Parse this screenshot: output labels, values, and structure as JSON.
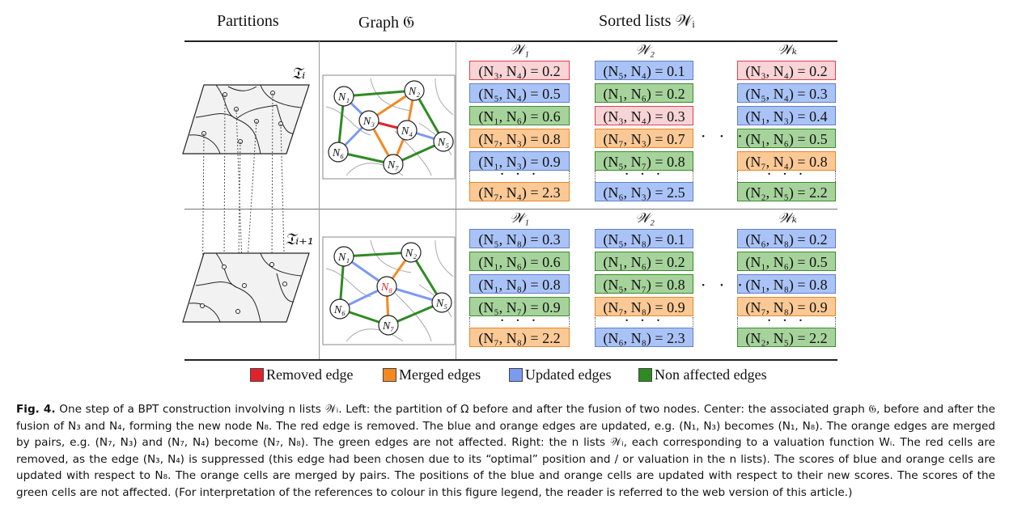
{
  "headers": {
    "partitions": "Partitions",
    "graph": "Graph 𝔊",
    "sorted_lists": "Sorted lists 𝒲ᵢ"
  },
  "partition_labels": {
    "top": "𝔗ᵢ",
    "bottom": "𝔗ᵢ₊₁"
  },
  "lists_top": [
    {
      "name": "𝒲₁",
      "cells": [
        {
          "text": "(N₃, N₄) = 0.2",
          "color": "red"
        },
        {
          "text": "(N₅, N₄) = 0.5",
          "color": "blue"
        },
        {
          "text": "(N₁, N₆) = 0.6",
          "color": "green"
        },
        {
          "text": "(N₇, N₃) = 0.8",
          "color": "orange"
        },
        {
          "text": "(N₁, N₃) = 0.9",
          "color": "blue"
        }
      ],
      "dots": "· · ·",
      "last": {
        "text": "(N₇, N₄) = 2.3",
        "color": "orange"
      }
    },
    {
      "name": "𝒲₂",
      "cells": [
        {
          "text": "(N₅, N₄) = 0.1",
          "color": "blue"
        },
        {
          "text": "(N₁, N₆) = 0.2",
          "color": "green"
        },
        {
          "text": "(N₃, N₄) = 0.3",
          "color": "red"
        },
        {
          "text": "(N₇, N₃) = 0.7",
          "color": "orange"
        },
        {
          "text": "(N₅, N₇) = 0.8",
          "color": "green"
        }
      ],
      "dots": "· · ·",
      "last": {
        "text": "(N₆, N₃) = 2.5",
        "color": "blue"
      }
    },
    {
      "name": "𝒲ₖ",
      "cells": [
        {
          "text": "(N₃, N₄) = 0.2",
          "color": "red"
        },
        {
          "text": "(N₅, N₄) = 0.3",
          "color": "blue"
        },
        {
          "text": "(N₁, N₃) = 0.4",
          "color": "blue"
        },
        {
          "text": "(N₁, N₆) = 0.5",
          "color": "green"
        },
        {
          "text": "(N₇, N₄) = 0.8",
          "color": "orange"
        }
      ],
      "dots": "· · ·",
      "last": {
        "text": "(N₂, N₅) = 2.2",
        "color": "green"
      }
    }
  ],
  "lists_bottom": [
    {
      "name": "𝒲₁",
      "cells": [
        {
          "text": "(N₅, N₈) = 0.3",
          "color": "blue"
        },
        {
          "text": "(N₁, N₆) = 0.6",
          "color": "green"
        },
        {
          "text": "(N₁, N₈) = 0.8",
          "color": "blue"
        },
        {
          "text": "(N₅, N₇) = 0.9",
          "color": "green"
        }
      ],
      "dots": "· · ·",
      "last": {
        "text": "(N₇, N₈) = 2.2",
        "color": "orange"
      }
    },
    {
      "name": "𝒲₂",
      "cells": [
        {
          "text": "(N₅, N₈) = 0.1",
          "color": "blue"
        },
        {
          "text": "(N₁, N₆) = 0.2",
          "color": "green"
        },
        {
          "text": "(N₅, N₇) = 0.8",
          "color": "green"
        },
        {
          "text": "(N₇, N₈) = 0.9",
          "color": "orange"
        }
      ],
      "dots": "· · ·",
      "last": {
        "text": "(N₆, N₈) = 2.3",
        "color": "blue"
      }
    },
    {
      "name": "𝒲ₖ",
      "cells": [
        {
          "text": "(N₆, N₈) = 0.2",
          "color": "blue"
        },
        {
          "text": "(N₁, N₆) = 0.5",
          "color": "green"
        },
        {
          "text": "(N₁, N₈) = 0.8",
          "color": "blue"
        },
        {
          "text": "(N₇, N₈) = 0.9",
          "color": "orange"
        }
      ],
      "dots": "· · ·",
      "last": {
        "text": "(N₂, N₅) = 2.2",
        "color": "green"
      }
    }
  ],
  "between_dots": "· · ·",
  "graph_top_nodes": [
    "N₁",
    "N₂",
    "N₃",
    "N₄",
    "N₅",
    "N₆",
    "N₇"
  ],
  "graph_bottom_nodes": [
    "N₁",
    "N₂",
    "N₈",
    "N₅",
    "N₆",
    "N₇"
  ],
  "legend": [
    {
      "label": "Removed edge",
      "color": "#e0232b"
    },
    {
      "label": "Merged edges",
      "color": "#f28a21"
    },
    {
      "label": "Updated edges",
      "color": "#7b9bf0"
    },
    {
      "label": "Non affected edges",
      "color": "#2f8a24"
    }
  ],
  "colors": {
    "red": "#e0232b",
    "orange": "#f28a21",
    "blue": "#7b9bf0",
    "green": "#2f8a24"
  },
  "caption": {
    "label": "Fig. 4.",
    "text": "One step of a BPT construction involving n lists 𝒲ᵢ. Left: the partition of Ω before and after the fusion of two nodes. Center: the associated graph 𝔊, before and after the fusion of N₃ and N₄, forming the new node N₈. The red edge is removed. The blue and orange edges are updated, e.g. (N₁, N₃) becomes (N₁, N₈). The orange edges are merged by pairs, e.g. (N₇, N₃) and (N₇, N₄) become (N₇, N₈). The green edges are not affected. Right: the n lists 𝒲ᵢ, each corresponding to a valuation function Wᵢ. The red cells are removed, as the edge (N₃, N₄) is suppressed (this edge had been chosen due to its “optimal” position and / or valuation in the n lists). The scores of blue and orange cells are updated with respect to N₈. The orange cells are merged by pairs. The positions of the blue and orange cells are updated with respect to their new scores. The scores of the green cells are not affected. (For interpretation of the references to colour in this figure legend, the reader is referred to the web version of this article.)"
  }
}
